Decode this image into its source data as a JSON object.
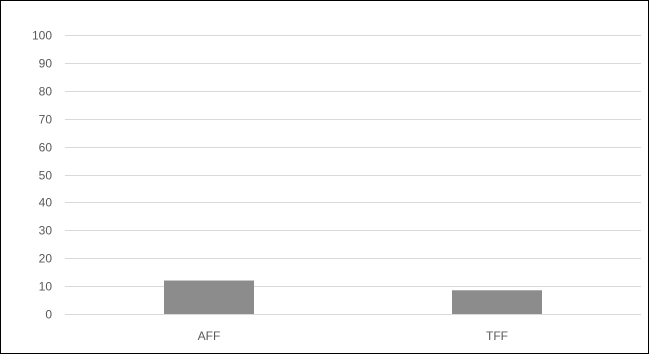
{
  "chart_data": {
    "type": "bar",
    "categories": [
      "AFF",
      "TFF"
    ],
    "values": [
      12,
      8.5
    ],
    "ylim": [
      0,
      100
    ],
    "yticks": [
      0,
      10,
      20,
      30,
      40,
      50,
      60,
      70,
      80,
      90,
      100
    ],
    "grid": true,
    "colors": {
      "bar": "#8c8c8c",
      "gridline": "#d9d9d9",
      "tick_label": "#595959",
      "frame": "#000000"
    }
  }
}
